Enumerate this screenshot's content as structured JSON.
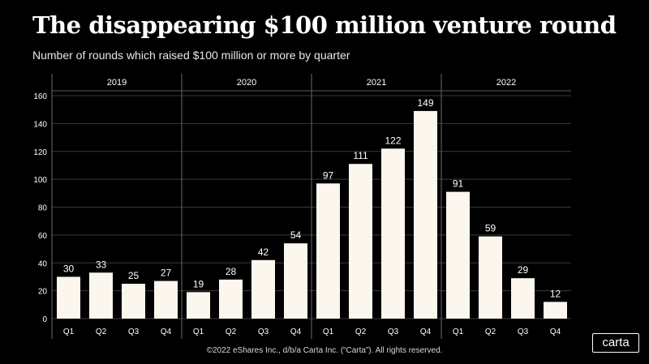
{
  "header": {
    "title": "The disappearing $100 million venture round",
    "subtitle": "Number of rounds which raised $100 million or more by quarter"
  },
  "footer": {
    "copyright": "©2022 eShares Inc., d/b/a Carta Inc. (“Carta”). All rights reserved.",
    "logo_text": "carta"
  },
  "chart_data": {
    "type": "bar",
    "title": "The disappearing $100 million venture round",
    "subtitle": "Number of rounds which raised $100 million or more by quarter",
    "xlabel": "",
    "ylabel": "",
    "ylim": [
      0,
      160
    ],
    "yticks": [
      0,
      20,
      40,
      60,
      80,
      100,
      120,
      140,
      160
    ],
    "grid": true,
    "bar_color": "#fbf6ee",
    "groups": [
      "2019",
      "2020",
      "2021",
      "2022"
    ],
    "categories": [
      "Q1",
      "Q2",
      "Q3",
      "Q4",
      "Q1",
      "Q2",
      "Q3",
      "Q4",
      "Q1",
      "Q2",
      "Q3",
      "Q4",
      "Q1",
      "Q2",
      "Q3",
      "Q4"
    ],
    "values": [
      30,
      33,
      25,
      27,
      19,
      28,
      42,
      54,
      97,
      111,
      122,
      149,
      91,
      59,
      29,
      12
    ]
  }
}
